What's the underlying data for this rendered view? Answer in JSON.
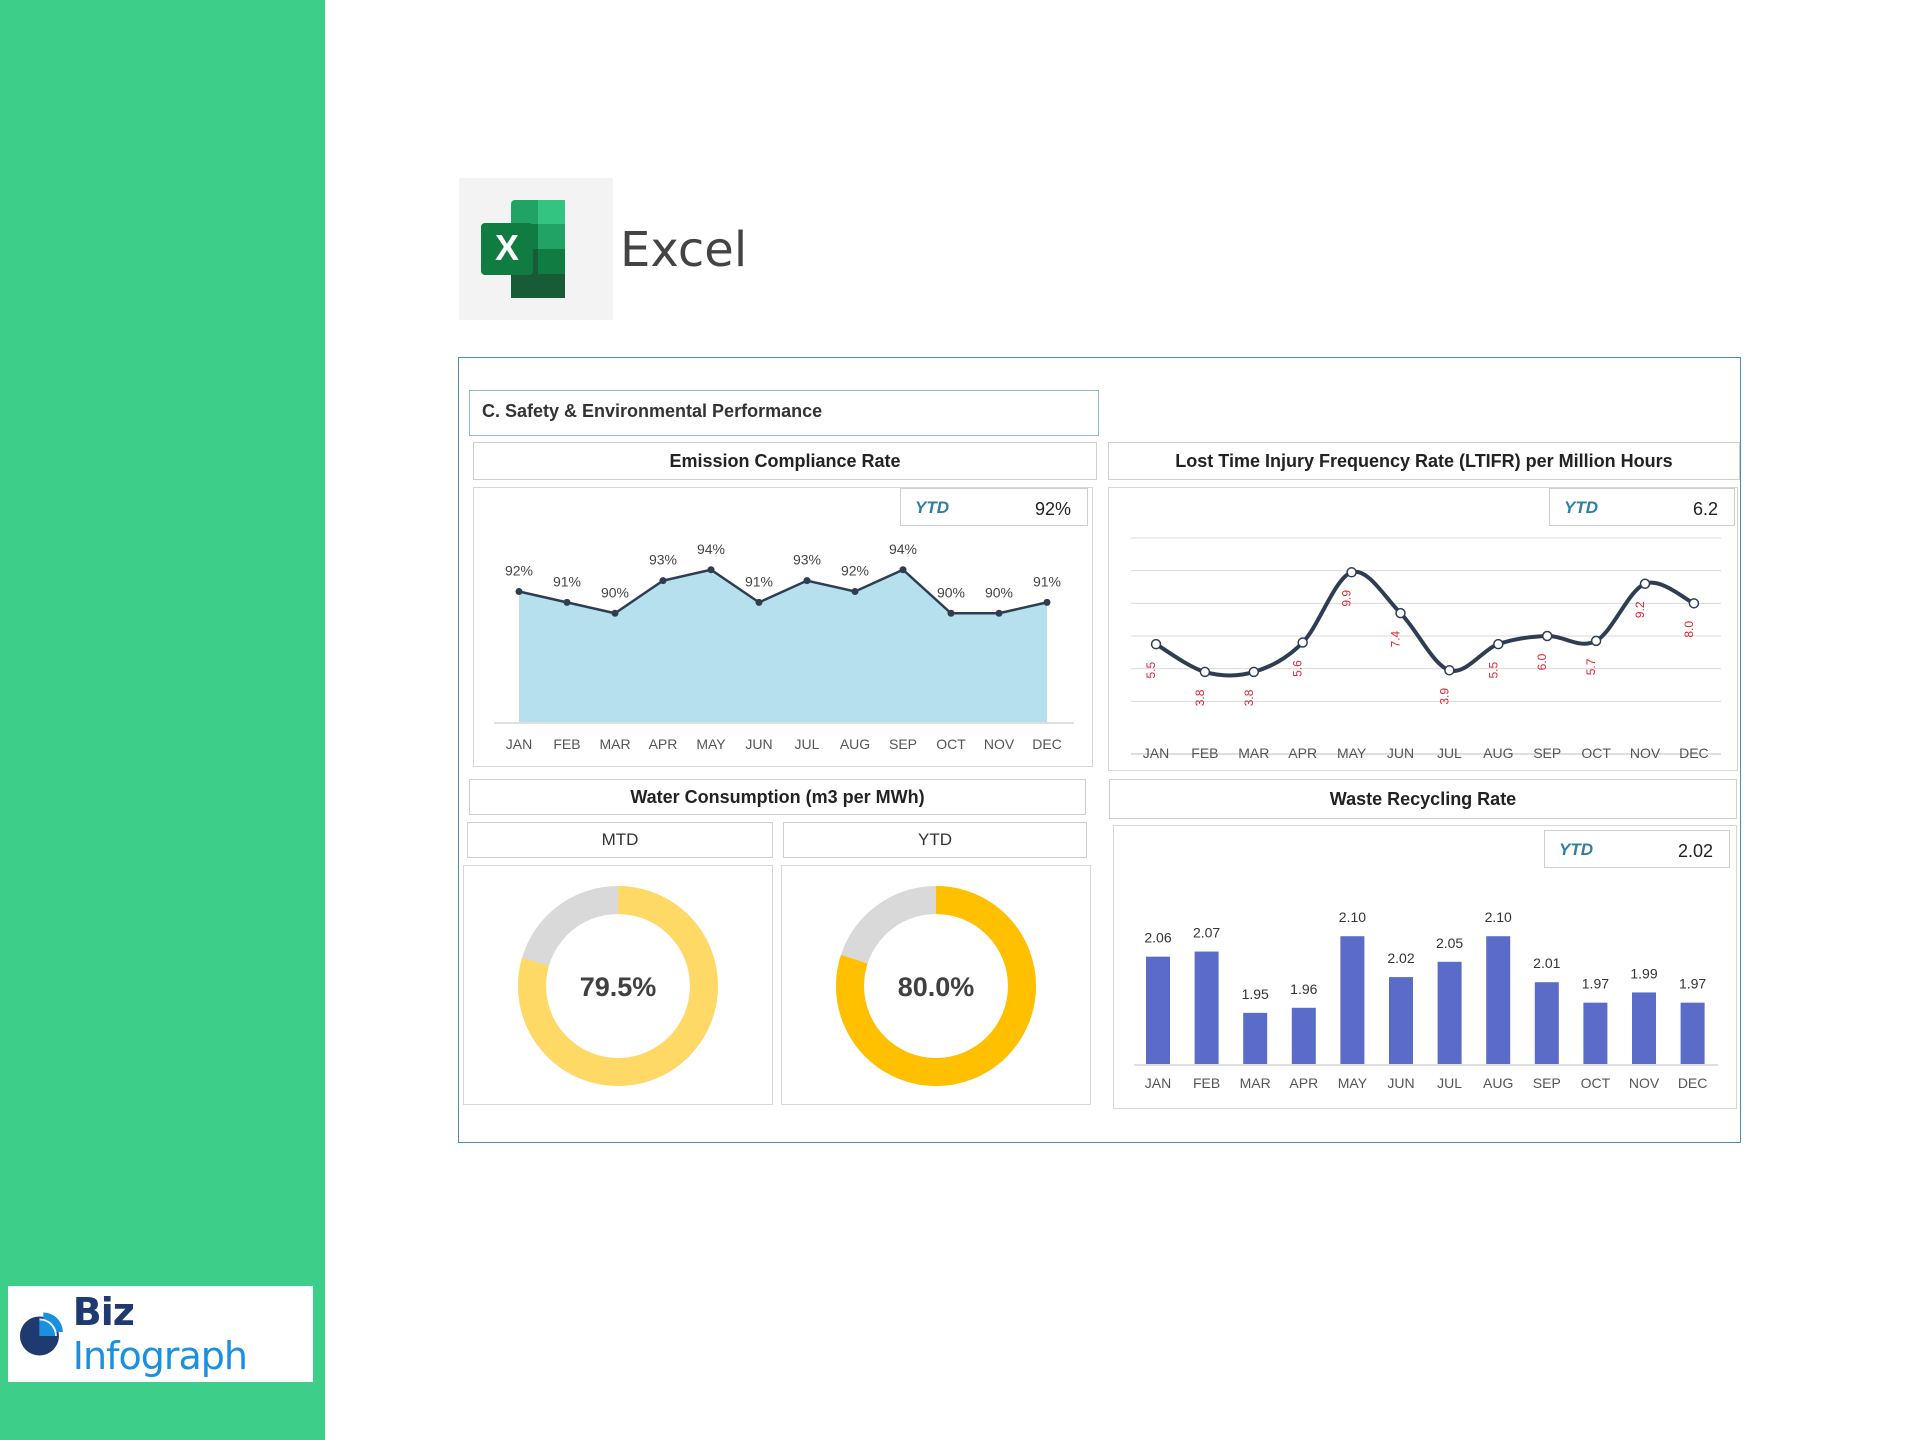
{
  "app": {
    "name": "Excel"
  },
  "brand": {
    "part1": "Biz",
    "part2": "Infograph"
  },
  "dashboard": {
    "section_title": "C. Safety & Environmental Performance"
  },
  "ytd_label": "YTD",
  "colors": {
    "sidebar": "#3dcf8a",
    "area_fill": "#b7e0ef",
    "line": "#2e3d52",
    "ltifr_label": "#d9272e",
    "bar": "#5b6bc8",
    "donut_mtd": "#ffd966",
    "donut_ytd": "#ffc000",
    "donut_rest": "#d9d9d9"
  },
  "chart_data": [
    {
      "type": "area",
      "title": "Emission Compliance Rate",
      "ytd": "92%",
      "categories": [
        "JAN",
        "FEB",
        "MAR",
        "APR",
        "MAY",
        "JUN",
        "JUL",
        "AUG",
        "SEP",
        "OCT",
        "NOV",
        "DEC"
      ],
      "values": [
        92,
        91,
        90,
        93,
        94,
        91,
        93,
        92,
        94,
        90,
        90,
        91
      ],
      "labels": [
        "92%",
        "91%",
        "90%",
        "93%",
        "94%",
        "91%",
        "93%",
        "92%",
        "94%",
        "90%",
        "90%",
        "91%"
      ],
      "ylim": [
        80,
        96
      ]
    },
    {
      "type": "line",
      "title": "Lost Time Injury Frequency Rate (LTIFR) per Million Hours",
      "ytd": "6.2",
      "categories": [
        "JAN",
        "FEB",
        "MAR",
        "APR",
        "MAY",
        "JUN",
        "JUL",
        "AUG",
        "SEP",
        "OCT",
        "NOV",
        "DEC"
      ],
      "values": [
        5.5,
        3.8,
        3.8,
        5.6,
        9.9,
        7.4,
        3.9,
        5.5,
        6.0,
        5.7,
        9.2,
        8.0
      ],
      "labels": [
        "5.5",
        "3.8",
        "3.8",
        "5.6",
        "9.9",
        "7.4",
        "3.9",
        "5.5",
        "6.0",
        "5.7",
        "9.2",
        "8.0"
      ],
      "ylim": [
        0,
        12
      ],
      "grid": true
    },
    {
      "type": "pie",
      "title": "Water Consumption (m3 per MWh)",
      "donuts": [
        {
          "label": "MTD",
          "value": 79.5,
          "text": "79.5%"
        },
        {
          "label": "YTD",
          "value": 80.0,
          "text": "80.0%"
        }
      ]
    },
    {
      "type": "bar",
      "title": "Waste Recycling Rate",
      "ytd": "2.02",
      "categories": [
        "JAN",
        "FEB",
        "MAR",
        "APR",
        "MAY",
        "JUN",
        "JUL",
        "AUG",
        "SEP",
        "OCT",
        "NOV",
        "DEC"
      ],
      "values": [
        2.06,
        2.07,
        1.95,
        1.96,
        2.1,
        2.02,
        2.05,
        2.1,
        2.01,
        1.97,
        1.99,
        1.97
      ],
      "labels": [
        "2.06",
        "2.07",
        "1.95",
        "1.96",
        "2.10",
        "2.02",
        "2.05",
        "2.10",
        "2.01",
        "1.97",
        "1.99",
        "1.97"
      ],
      "ylim": [
        1.85,
        2.12
      ]
    }
  ]
}
